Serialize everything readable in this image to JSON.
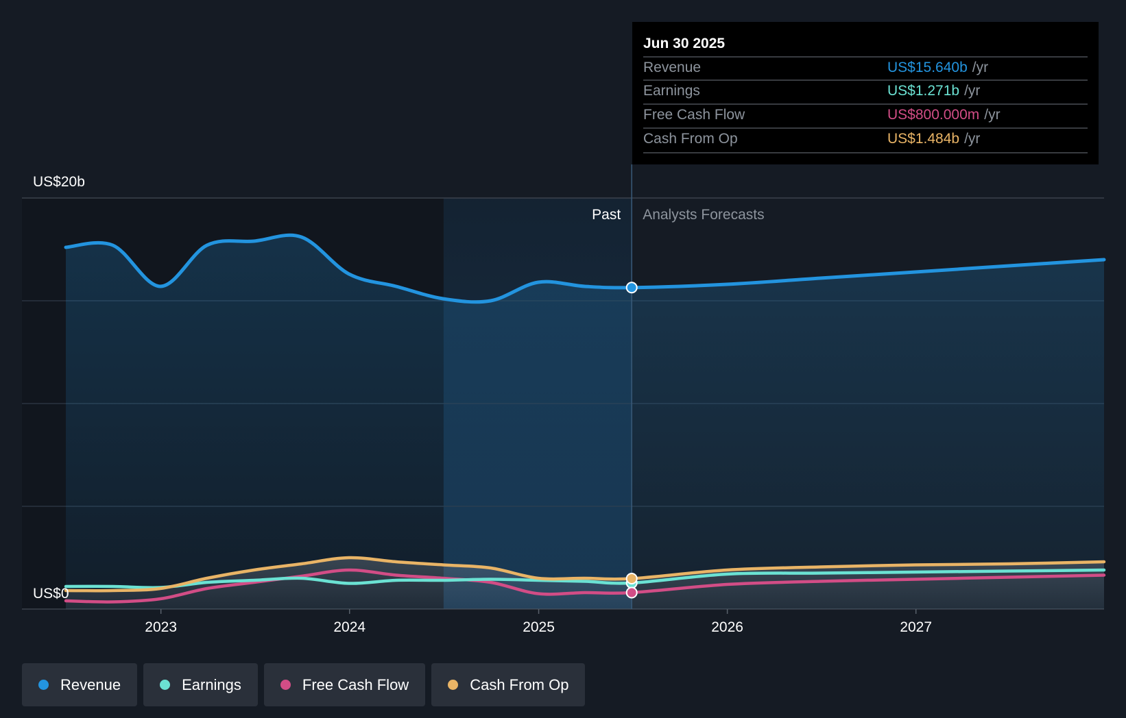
{
  "colors": {
    "background": "#151b24",
    "revenue": "#2394df",
    "earnings": "#6be2d3",
    "free_cash_flow": "#d24d86",
    "cash_from_op": "#e9b466",
    "past_highlight": "#1a3a57"
  },
  "chart_data": {
    "type": "line",
    "title": "",
    "xlabel": "",
    "ylabel": "",
    "x_ticks": [
      "2023",
      "2024",
      "2025",
      "2026",
      "2027"
    ],
    "y_labels": [
      "US$20b",
      "US$0"
    ],
    "ylim": [
      0,
      20
    ],
    "y_unit": "US$ billions",
    "xlim": [
      "2022-07-01",
      "2027-12-31"
    ],
    "grid": true,
    "legend_placement": "bottom",
    "past_label": "Past",
    "forecast_label": "Analysts Forecasts",
    "divider_date": "2025-06-30",
    "highlight_start": "2024-07-01",
    "series": [
      {
        "name": "Revenue",
        "color": "#2394df",
        "points": [
          [
            "2022-07-01",
            17.6
          ],
          [
            "2022-09-30",
            17.7
          ],
          [
            "2022-12-31",
            15.7
          ],
          [
            "2023-03-31",
            17.7
          ],
          [
            "2023-06-30",
            17.9
          ],
          [
            "2023-09-30",
            18.1
          ],
          [
            "2023-12-31",
            16.3
          ],
          [
            "2024-03-31",
            15.7
          ],
          [
            "2024-06-30",
            15.1
          ],
          [
            "2024-09-30",
            15.0
          ],
          [
            "2024-12-31",
            15.9
          ],
          [
            "2025-03-31",
            15.7
          ],
          [
            "2025-06-30",
            15.64
          ],
          [
            "2025-12-31",
            15.8
          ],
          [
            "2026-06-30",
            16.1
          ],
          [
            "2026-12-31",
            16.4
          ],
          [
            "2027-06-30",
            16.7
          ],
          [
            "2027-12-31",
            17.0
          ]
        ]
      },
      {
        "name": "Earnings",
        "color": "#6be2d3",
        "points": [
          [
            "2022-07-01",
            1.1
          ],
          [
            "2022-09-30",
            1.1
          ],
          [
            "2022-12-31",
            1.05
          ],
          [
            "2023-03-31",
            1.3
          ],
          [
            "2023-06-30",
            1.4
          ],
          [
            "2023-09-30",
            1.5
          ],
          [
            "2023-12-31",
            1.25
          ],
          [
            "2024-03-31",
            1.4
          ],
          [
            "2024-06-30",
            1.4
          ],
          [
            "2024-09-30",
            1.45
          ],
          [
            "2024-12-31",
            1.4
          ],
          [
            "2025-03-31",
            1.35
          ],
          [
            "2025-06-30",
            1.271
          ],
          [
            "2025-12-31",
            1.7
          ],
          [
            "2026-06-30",
            1.75
          ],
          [
            "2026-12-31",
            1.8
          ],
          [
            "2027-06-30",
            1.85
          ],
          [
            "2027-12-31",
            1.9
          ]
        ]
      },
      {
        "name": "Free Cash Flow",
        "color": "#d24d86",
        "points": [
          [
            "2022-07-01",
            0.4
          ],
          [
            "2022-09-30",
            0.35
          ],
          [
            "2022-12-31",
            0.5
          ],
          [
            "2023-03-31",
            1.0
          ],
          [
            "2023-06-30",
            1.3
          ],
          [
            "2023-09-30",
            1.6
          ],
          [
            "2023-12-31",
            1.9
          ],
          [
            "2024-03-31",
            1.65
          ],
          [
            "2024-06-30",
            1.5
          ],
          [
            "2024-09-30",
            1.3
          ],
          [
            "2024-12-31",
            0.75
          ],
          [
            "2025-03-31",
            0.8
          ],
          [
            "2025-06-30",
            0.8
          ],
          [
            "2025-12-31",
            1.2
          ],
          [
            "2026-06-30",
            1.35
          ],
          [
            "2026-12-31",
            1.45
          ],
          [
            "2027-06-30",
            1.55
          ],
          [
            "2027-12-31",
            1.65
          ]
        ]
      },
      {
        "name": "Cash From Op",
        "color": "#e9b466",
        "points": [
          [
            "2022-07-01",
            0.9
          ],
          [
            "2022-09-30",
            0.9
          ],
          [
            "2022-12-31",
            1.0
          ],
          [
            "2023-03-31",
            1.5
          ],
          [
            "2023-06-30",
            1.9
          ],
          [
            "2023-09-30",
            2.2
          ],
          [
            "2023-12-31",
            2.5
          ],
          [
            "2024-03-31",
            2.3
          ],
          [
            "2024-06-30",
            2.15
          ],
          [
            "2024-09-30",
            2.0
          ],
          [
            "2024-12-31",
            1.5
          ],
          [
            "2025-03-31",
            1.5
          ],
          [
            "2025-06-30",
            1.484
          ],
          [
            "2025-12-31",
            1.9
          ],
          [
            "2026-06-30",
            2.05
          ],
          [
            "2026-12-31",
            2.15
          ],
          [
            "2027-06-30",
            2.2
          ],
          [
            "2027-12-31",
            2.3
          ]
        ]
      }
    ]
  },
  "tooltip": {
    "date": "Jun 30 2025",
    "rows": [
      {
        "label": "Revenue",
        "value": "US$15.640b",
        "unit": "/yr",
        "color": "#2394df"
      },
      {
        "label": "Earnings",
        "value": "US$1.271b",
        "unit": "/yr",
        "color": "#6be2d3"
      },
      {
        "label": "Free Cash Flow",
        "value": "US$800.000m",
        "unit": "/yr",
        "color": "#d24d86"
      },
      {
        "label": "Cash From Op",
        "value": "US$1.484b",
        "unit": "/yr",
        "color": "#e9b466"
      }
    ]
  },
  "legend": {
    "items": [
      {
        "label": "Revenue",
        "color": "#2394df"
      },
      {
        "label": "Earnings",
        "color": "#6be2d3"
      },
      {
        "label": "Free Cash Flow",
        "color": "#d24d86"
      },
      {
        "label": "Cash From Op",
        "color": "#e9b466"
      }
    ]
  }
}
